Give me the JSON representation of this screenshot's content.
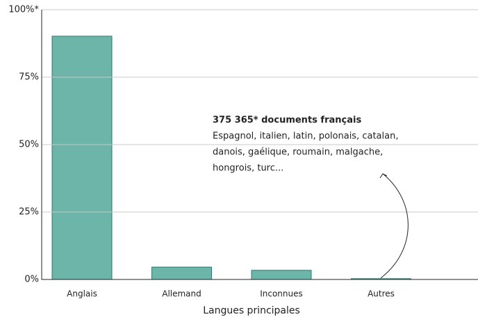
{
  "chart_data": {
    "type": "bar",
    "categories": [
      "Anglais",
      "Allemand",
      "Inconnues",
      "Autres"
    ],
    "values": [
      90.2,
      4.6,
      3.4,
      0.3
    ],
    "color": "#6db5a8",
    "ylim": [
      0,
      100
    ],
    "yticks": [
      {
        "value": 0,
        "label": "0%"
      },
      {
        "value": 25,
        "label": "25%"
      },
      {
        "value": 50,
        "label": "50%"
      },
      {
        "value": 75,
        "label": "75%"
      },
      {
        "value": 100,
        "label": "100%*"
      }
    ],
    "grid": true,
    "x_label": "Langues principales",
    "annotation": {
      "title": "375 365* documents français",
      "lines": [
        "Espagnol, italien, latin, polonais, catalan,",
        "danois, gaélique, roumain, malgache,",
        "hongrois, turc..."
      ]
    }
  }
}
